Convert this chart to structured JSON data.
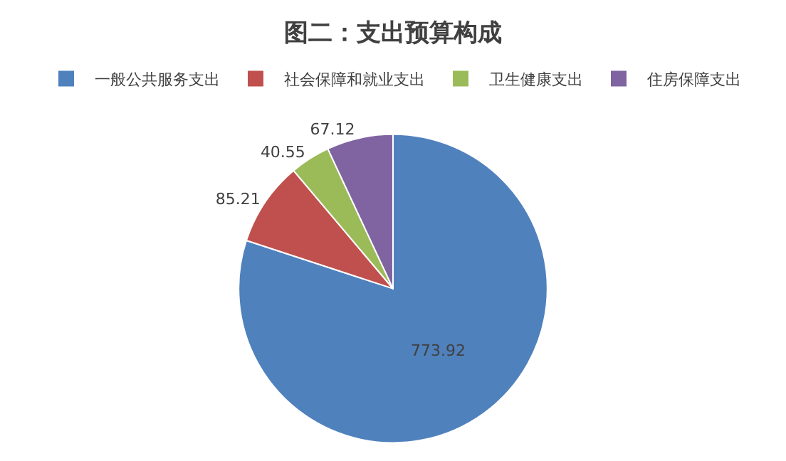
{
  "chart_data": {
    "type": "pie",
    "title": "图二：支出预算构成",
    "categories": [
      "一般公共服务支出",
      "社会保障和就业支出",
      "卫生健康支出",
      "住房保障支出"
    ],
    "values": [
      773.92,
      85.21,
      40.55,
      67.12
    ],
    "colors": [
      "#4f81bd",
      "#c0504d",
      "#9bbb59",
      "#8064a2"
    ],
    "data_labels": true,
    "legend": "top"
  }
}
